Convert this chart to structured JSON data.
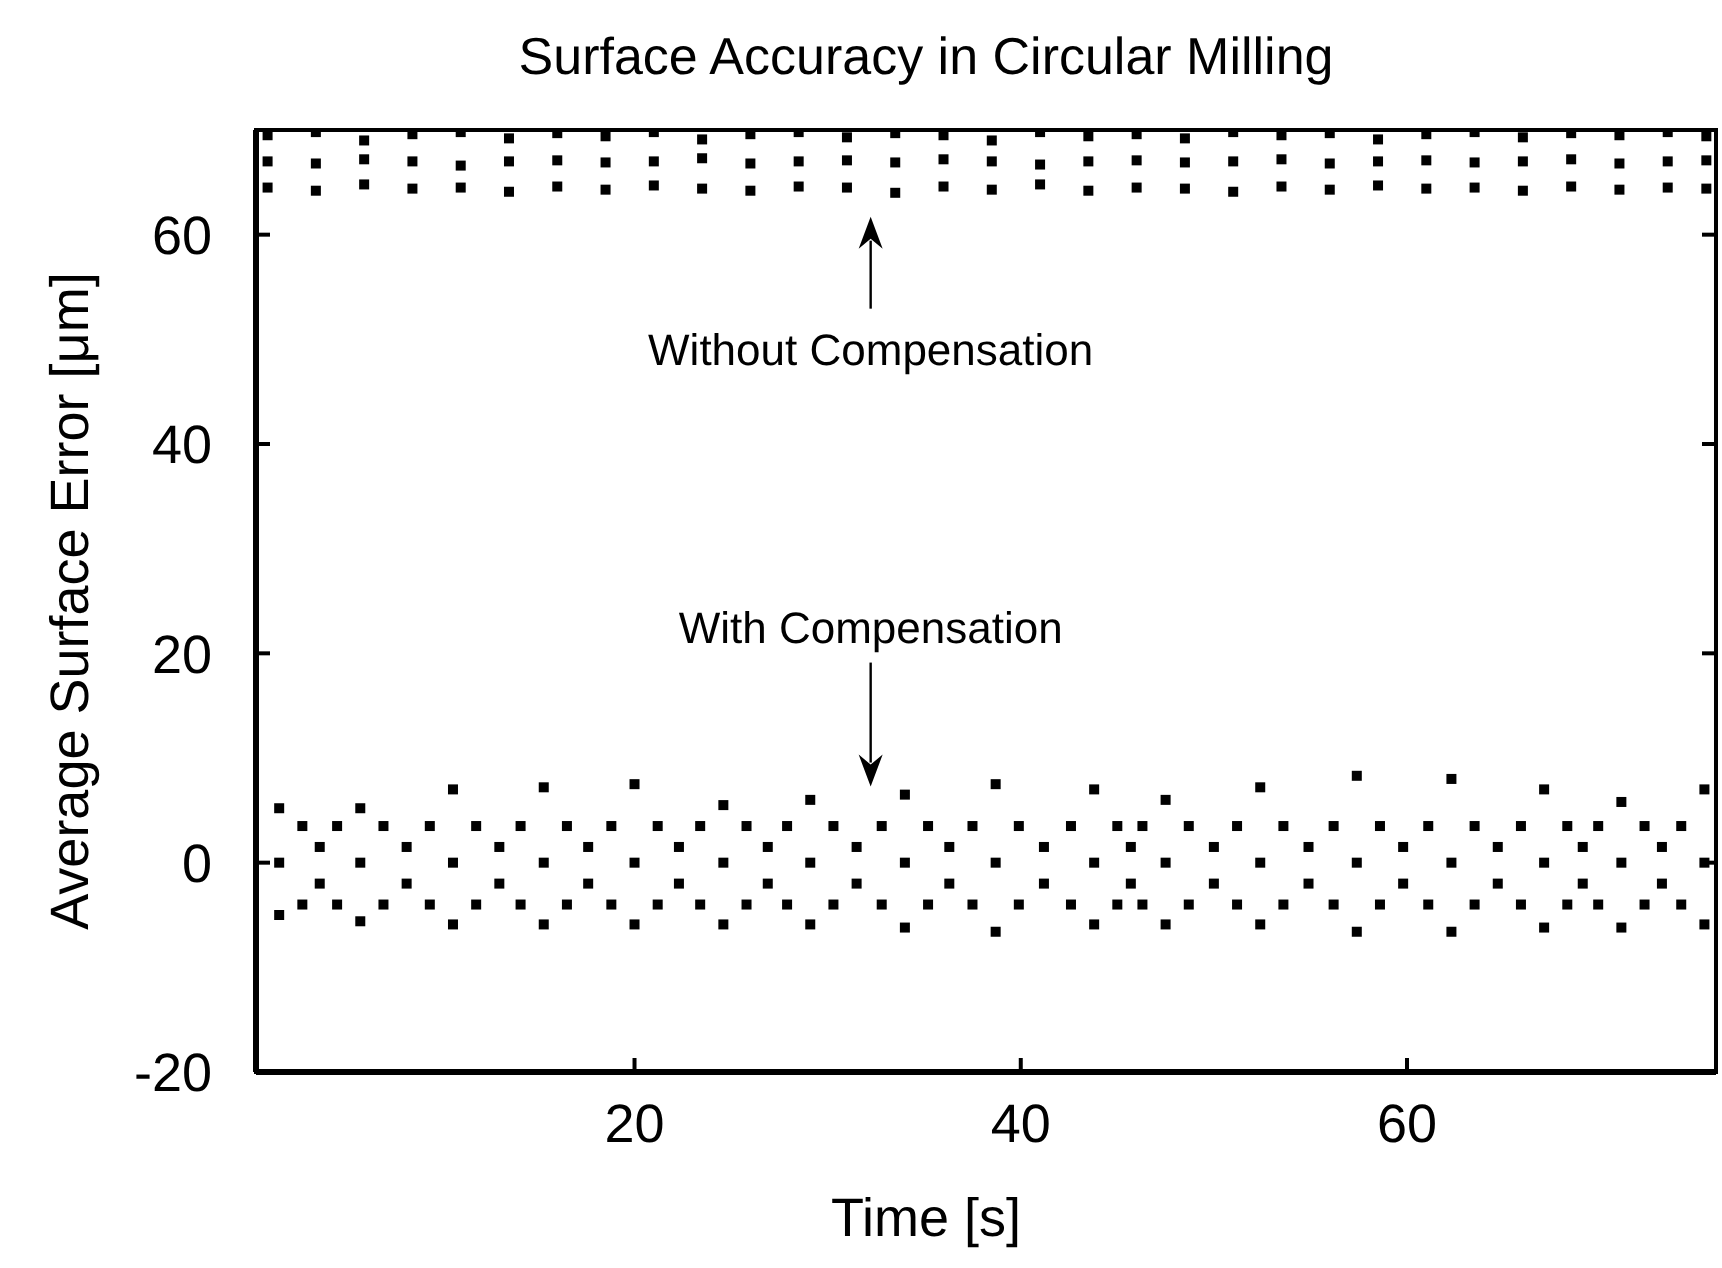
{
  "chart_data": {
    "type": "scatter",
    "title": "Surface Accuracy in Circular Milling",
    "xlabel": "Time [s]",
    "ylabel": "Average Surface Error [μm]",
    "xlim": [
      0.4,
      76
    ],
    "xticks": [
      20,
      40,
      60
    ],
    "ylim": [
      -20,
      70
    ],
    "yticks": [
      -20,
      0,
      20,
      40,
      60
    ],
    "marker": "square",
    "annotations": [
      "Without Compensation",
      "With Compensation"
    ],
    "series": [
      {
        "color": "#000000",
        "x": [
          1,
          1,
          1,
          3.5,
          3.5,
          3.5,
          6,
          6,
          6,
          8.5,
          8.5,
          8.5,
          11,
          11,
          11,
          13.5,
          13.5,
          13.5,
          16,
          16,
          16,
          18.5,
          18.5,
          18.5,
          21,
          21,
          21,
          23.5,
          23.5,
          23.5,
          26,
          26,
          26,
          28.5,
          28.5,
          28.5,
          31,
          31,
          31,
          33.5,
          33.5,
          33.5,
          36,
          36,
          36,
          38.5,
          38.5,
          38.5,
          41,
          41,
          41,
          43.5,
          43.5,
          43.5,
          46,
          46,
          46,
          48.5,
          48.5,
          48.5,
          51,
          51,
          51,
          53.5,
          53.5,
          53.5,
          56,
          56,
          56,
          58.5,
          58.5,
          58.5,
          61,
          61,
          61,
          63.5,
          63.5,
          63.5,
          66,
          66,
          66,
          68.5,
          68.5,
          68.5,
          71,
          71,
          71,
          73.5,
          73.5,
          73.5,
          75.5,
          75.5,
          75.5
        ],
        "values": [
          69.5,
          67,
          64.5,
          69.8,
          66.8,
          64.2,
          69,
          67.2,
          64.8,
          69.6,
          67,
          64.4,
          69.8,
          66.6,
          64.5,
          69.2,
          67,
          64.1,
          69.7,
          67.1,
          64.6,
          69.4,
          66.9,
          64.3,
          69.8,
          67,
          64.7,
          69.1,
          67.3,
          64.4,
          69.6,
          66.8,
          64.2,
          69.8,
          67,
          64.6,
          69.3,
          67.1,
          64.5,
          69.7,
          66.9,
          64,
          69.5,
          67.2,
          64.6,
          69,
          67,
          64.3,
          69.8,
          66.7,
          64.8,
          69.4,
          67,
          64.2,
          69.6,
          67.1,
          64.5,
          69.2,
          66.9,
          64.4,
          69.8,
          67,
          64.1,
          69.5,
          67.2,
          64.6,
          69.7,
          66.8,
          64.3,
          69.1,
          67,
          64.7,
          69.6,
          67.1,
          64.4,
          69.8,
          66.9,
          64.5,
          69.3,
          67,
          64.2,
          69.7,
          67.2,
          64.6,
          69.5,
          66.8,
          64.3,
          69.8,
          67,
          64.5,
          69.4,
          67.1,
          64.4
        ]
      },
      {
        "color": "#000000",
        "x": [
          1.6,
          1.6,
          1.6,
          2.8,
          2.8,
          3.7,
          3.7,
          4.6,
          4.6,
          5.8,
          5.8,
          5.8,
          7,
          7,
          8.2,
          8.2,
          9.4,
          9.4,
          10.6,
          10.6,
          10.6,
          11.8,
          11.8,
          13,
          13,
          14.1,
          14.1,
          15.3,
          15.3,
          15.3,
          16.5,
          16.5,
          17.6,
          17.6,
          18.8,
          18.8,
          20,
          20,
          20,
          21.2,
          21.2,
          22.3,
          22.3,
          23.4,
          23.4,
          24.6,
          24.6,
          24.6,
          25.8,
          25.8,
          26.9,
          26.9,
          27.9,
          27.9,
          29.1,
          29.1,
          29.1,
          30.3,
          30.3,
          31.5,
          31.5,
          32.8,
          32.8,
          34,
          34,
          34,
          35.2,
          35.2,
          36.3,
          36.3,
          37.5,
          37.5,
          38.7,
          38.7,
          38.7,
          39.9,
          39.9,
          41.2,
          41.2,
          42.6,
          42.6,
          43.8,
          43.8,
          43.8,
          45,
          45,
          45.7,
          45.7,
          46.3,
          46.3,
          47.5,
          47.5,
          47.5,
          48.7,
          48.7,
          50,
          50,
          51.2,
          51.2,
          52.4,
          52.4,
          52.4,
          53.6,
          53.6,
          54.9,
          54.9,
          56.2,
          56.2,
          57.4,
          57.4,
          57.4,
          58.6,
          58.6,
          59.8,
          59.8,
          61.1,
          61.1,
          62.3,
          62.3,
          62.3,
          63.5,
          63.5,
          64.7,
          64.7,
          65.9,
          65.9,
          67.1,
          67.1,
          67.1,
          68.3,
          68.3,
          69.1,
          69.1,
          69.9,
          69.9,
          71.1,
          71.1,
          71.1,
          72.3,
          72.3,
          73.2,
          73.2,
          74.2,
          74.2,
          75.4,
          75.4,
          75.4
        ],
        "values": [
          5.2,
          0,
          -5,
          3.5,
          -4,
          1.5,
          -2,
          3.5,
          -4,
          5.2,
          0,
          -5.6,
          3.5,
          -4,
          1.5,
          -2,
          3.5,
          -4,
          7,
          0,
          -5.9,
          3.5,
          -4,
          1.5,
          -2,
          3.5,
          -4,
          7.2,
          0,
          -5.9,
          3.5,
          -4,
          1.5,
          -2,
          3.5,
          -4,
          7.5,
          0,
          -5.9,
          3.5,
          -4,
          1.5,
          -2,
          3.5,
          -4,
          5.5,
          0,
          -5.9,
          3.5,
          -4,
          1.5,
          -2,
          3.5,
          -4,
          6,
          0,
          -5.9,
          3.5,
          -4,
          1.5,
          -2,
          3.5,
          -4,
          6.5,
          0,
          -6.2,
          3.5,
          -4,
          1.5,
          -2,
          3.5,
          -4,
          7.5,
          0,
          -6.6,
          3.5,
          -4,
          1.5,
          -2,
          3.5,
          -4,
          7,
          0,
          -5.9,
          3.5,
          -4,
          1.5,
          -2,
          3.5,
          -4,
          6,
          0,
          -5.9,
          3.5,
          -4,
          1.5,
          -2,
          3.5,
          -4,
          7.2,
          0,
          -5.9,
          3.5,
          -4,
          1.5,
          -2,
          3.5,
          -4,
          8.3,
          0,
          -6.6,
          3.5,
          -4,
          1.5,
          -2,
          3.5,
          -4,
          8,
          0,
          -6.6,
          3.5,
          -4,
          1.5,
          -2,
          3.5,
          -4,
          7,
          0,
          -6.2,
          3.5,
          -4,
          1.5,
          -2,
          3.5,
          -4,
          5.8,
          0,
          -6.2,
          3.5,
          -4,
          1.5,
          -2,
          3.5,
          -4,
          7,
          0,
          -5.9
        ]
      }
    ]
  }
}
